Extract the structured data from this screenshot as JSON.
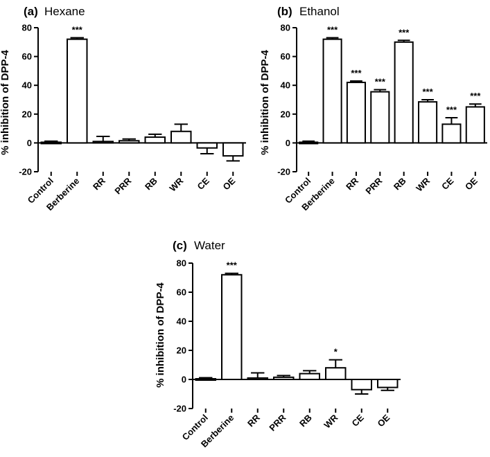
{
  "ylabel": "% inhibition of DPP-4",
  "chart_data": [
    {
      "type": "bar",
      "tag": "(a)",
      "title": "Hexane",
      "ylabel": "% inhibition of DPP-4",
      "ylim": [
        -20,
        80
      ],
      "yticks": [
        -20,
        0,
        20,
        40,
        60,
        80
      ],
      "categories": [
        "Control",
        "Berberine",
        "RR",
        "PRR",
        "RB",
        "WR",
        "CE",
        "OE"
      ],
      "values": [
        0,
        72,
        1,
        1.5,
        4,
        8,
        -3.5,
        -9
      ],
      "errors": [
        1.2,
        1,
        3.5,
        1.2,
        2,
        5,
        4,
        3.5
      ],
      "significance": [
        "",
        "***",
        "",
        "",
        "",
        "",
        "",
        ""
      ]
    },
    {
      "type": "bar",
      "tag": "(b)",
      "title": "Ethanol",
      "ylabel": "% inhibition of DPP-4",
      "ylim": [
        -20,
        80
      ],
      "yticks": [
        -20,
        0,
        20,
        40,
        60,
        80
      ],
      "categories": [
        "Control",
        "Berberine",
        "RR",
        "PRR",
        "RB",
        "WR",
        "CE",
        "OE"
      ],
      "values": [
        0,
        72,
        42,
        35.5,
        70,
        28.5,
        13,
        25
      ],
      "errors": [
        1.2,
        1,
        1,
        1.5,
        1.2,
        1.5,
        4.5,
        2
      ],
      "significance": [
        "",
        "***",
        "***",
        "***",
        "***",
        "***",
        "***",
        "***"
      ]
    },
    {
      "type": "bar",
      "tag": "(c)",
      "title": "Water",
      "ylabel": "% inhibition of DPP-4",
      "ylim": [
        -20,
        80
      ],
      "yticks": [
        -20,
        0,
        20,
        40,
        60,
        80
      ],
      "categories": [
        "Control",
        "Berberine",
        "RR",
        "PRR",
        "RB",
        "WR",
        "CE",
        "OE"
      ],
      "values": [
        0,
        72,
        1,
        1.5,
        4,
        8,
        -7,
        -5.5
      ],
      "errors": [
        1.2,
        1,
        3.5,
        1.2,
        2,
        5.5,
        3,
        2
      ],
      "significance": [
        "",
        "***",
        "",
        "",
        "",
        "*",
        "",
        ""
      ]
    }
  ]
}
